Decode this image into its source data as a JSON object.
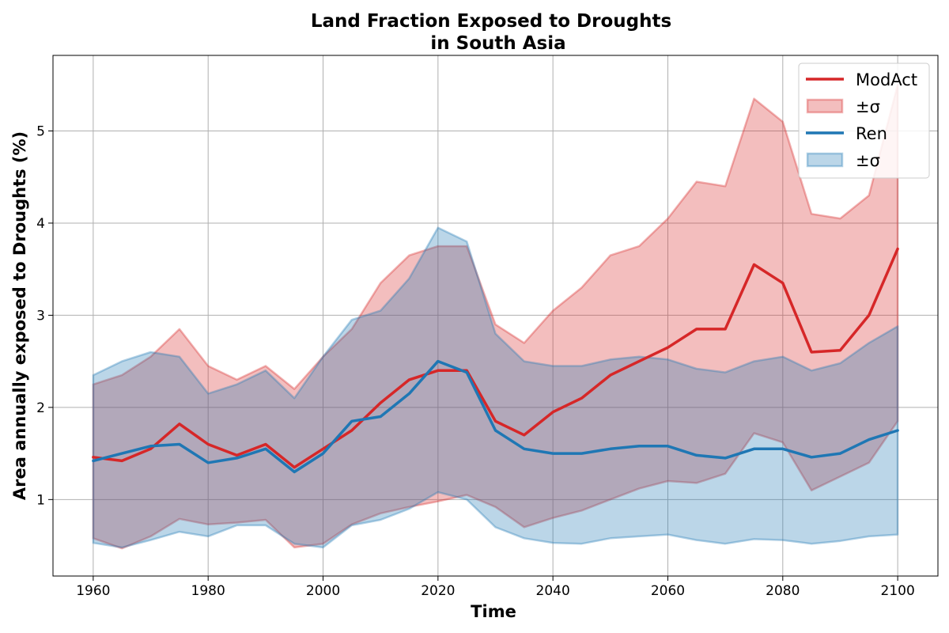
{
  "chart_data": {
    "type": "line",
    "title_line1": "Land Fraction Exposed to Droughts",
    "title_line2": "in South Asia",
    "xlabel": "Time",
    "ylabel": "Area annually exposed to Droughts (%)",
    "xlim": [
      1953,
      2107
    ],
    "ylim": [
      0.17,
      5.82
    ],
    "x_ticks": [
      1960,
      1980,
      2000,
      2020,
      2040,
      2060,
      2080,
      2100
    ],
    "y_ticks": [
      1,
      2,
      3,
      4,
      5
    ],
    "grid": true,
    "legend_position": "top-right",
    "legend": [
      {
        "label": "ModAct",
        "kind": "line",
        "series": "ModAct"
      },
      {
        "label": "±σ",
        "kind": "band",
        "series": "ModAct"
      },
      {
        "label": "Ren",
        "kind": "line",
        "series": "Ren"
      },
      {
        "label": "±σ",
        "kind": "band",
        "series": "Ren"
      }
    ],
    "series": [
      {
        "name": "ModAct",
        "color": "#d62728",
        "band_color": "#f2b5b6",
        "x": [
          1960,
          1965,
          1970,
          1975,
          1980,
          1985,
          1990,
          1995,
          2000,
          2005,
          2010,
          2015,
          2020,
          2025,
          2030,
          2035,
          2040,
          2045,
          2050,
          2055,
          2060,
          2065,
          2070,
          2075,
          2080,
          2085,
          2090,
          2095,
          2100
        ],
        "mean": [
          1.46,
          1.42,
          1.55,
          1.82,
          1.6,
          1.48,
          1.6,
          1.35,
          1.55,
          1.75,
          2.05,
          2.3,
          2.4,
          2.4,
          1.85,
          1.7,
          1.95,
          2.1,
          2.35,
          2.5,
          2.65,
          2.85,
          2.85,
          3.55,
          3.35,
          2.6,
          2.62,
          3.0,
          3.72
        ],
        "upper": [
          2.25,
          2.35,
          2.55,
          2.85,
          2.45,
          2.3,
          2.45,
          2.2,
          2.55,
          2.85,
          3.35,
          3.65,
          3.75,
          3.75,
          2.9,
          2.7,
          3.05,
          3.3,
          3.65,
          3.75,
          4.05,
          4.45,
          4.4,
          5.35,
          5.1,
          4.1,
          4.05,
          4.3,
          5.5
        ],
        "lower": [
          0.58,
          0.47,
          0.6,
          0.79,
          0.73,
          0.75,
          0.78,
          0.48,
          0.52,
          0.73,
          0.85,
          0.92,
          0.98,
          1.05,
          0.92,
          0.7,
          0.8,
          0.88,
          1.0,
          1.12,
          1.2,
          1.18,
          1.28,
          1.72,
          1.62,
          1.1,
          1.25,
          1.4,
          1.85
        ]
      },
      {
        "name": "Ren",
        "color": "#1f77b4",
        "band_color": "#b7d2e9",
        "x": [
          1960,
          1965,
          1970,
          1975,
          1980,
          1985,
          1990,
          1995,
          2000,
          2005,
          2010,
          2015,
          2020,
          2025,
          2030,
          2035,
          2040,
          2045,
          2050,
          2055,
          2060,
          2065,
          2070,
          2075,
          2080,
          2085,
          2090,
          2095,
          2100
        ],
        "mean": [
          1.42,
          1.5,
          1.58,
          1.6,
          1.4,
          1.45,
          1.55,
          1.3,
          1.5,
          1.85,
          1.9,
          2.15,
          2.5,
          2.38,
          1.75,
          1.55,
          1.5,
          1.5,
          1.55,
          1.58,
          1.58,
          1.48,
          1.45,
          1.55,
          1.55,
          1.46,
          1.5,
          1.65,
          1.75
        ],
        "upper": [
          2.35,
          2.5,
          2.6,
          2.55,
          2.15,
          2.25,
          2.4,
          2.1,
          2.55,
          2.95,
          3.05,
          3.4,
          3.95,
          3.8,
          2.8,
          2.5,
          2.45,
          2.45,
          2.52,
          2.55,
          2.52,
          2.42,
          2.38,
          2.5,
          2.55,
          2.4,
          2.48,
          2.7,
          2.88
        ],
        "lower": [
          0.53,
          0.48,
          0.56,
          0.65,
          0.6,
          0.72,
          0.72,
          0.52,
          0.48,
          0.72,
          0.78,
          0.9,
          1.08,
          1.0,
          0.7,
          0.58,
          0.53,
          0.52,
          0.58,
          0.6,
          0.62,
          0.56,
          0.52,
          0.57,
          0.56,
          0.52,
          0.55,
          0.6,
          0.62
        ]
      }
    ]
  }
}
